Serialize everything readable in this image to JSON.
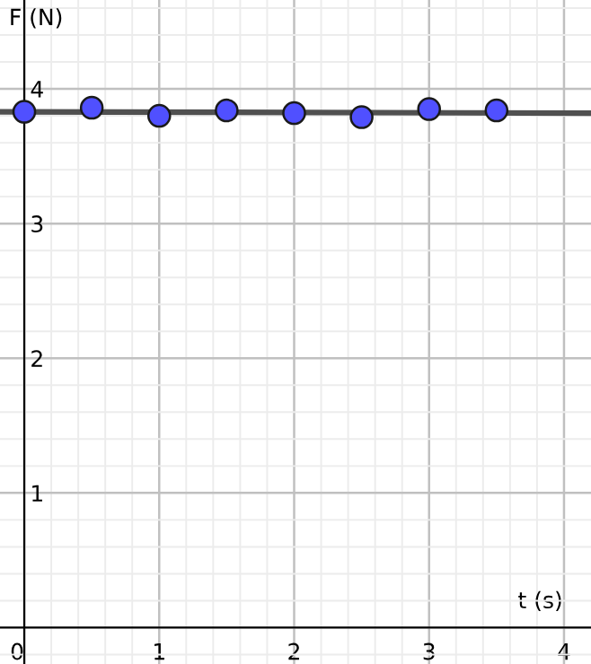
{
  "chart_data": {
    "type": "scatter",
    "xlabel": "t (s)",
    "ylabel": "F (N)",
    "x": [
      0,
      0.5,
      1,
      1.5,
      2,
      2.5,
      3,
      3.5
    ],
    "series": [
      {
        "color": "#5050ff",
        "values": [
          3.83,
          3.86,
          3.8,
          3.84,
          3.82,
          3.79,
          3.85,
          3.84
        ]
      },
      {
        "type": "line",
        "marker": "none",
        "color": "#505050",
        "x": [
          -0.18,
          4.2
        ],
        "values": [
          3.83,
          3.82
        ]
      }
    ],
    "xlim": [
      -0.18,
      4.2
    ],
    "ylim": [
      -0.27,
      4.66
    ],
    "xticks": [
      0,
      1,
      2,
      3,
      4
    ],
    "yticks": [
      1,
      2,
      3,
      4
    ],
    "grid": true,
    "marker": "circle"
  }
}
